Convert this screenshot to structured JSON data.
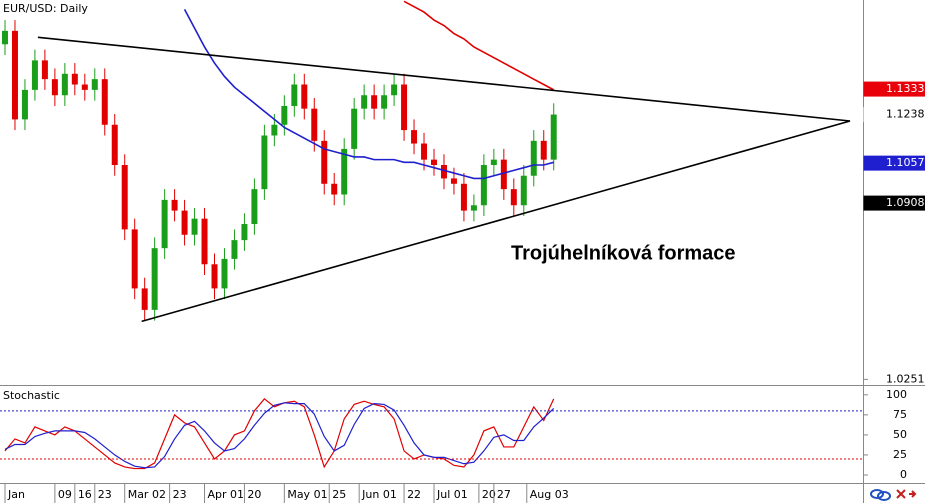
{
  "chart_data": [
    {
      "type": "candlestick",
      "title": "EUR/USD: Daily",
      "annotation": "Trojúhelníková formace",
      "xlim": [
        -0.5,
        86
      ],
      "ylim": [
        1.023,
        1.1665
      ],
      "yticks": [
        1.0251
      ],
      "up_color": "#1a9e1a",
      "down_color": "#e00000",
      "open": [
        1.15,
        1.155,
        1.122,
        1.133,
        1.144,
        1.137,
        1.131,
        1.139,
        1.135,
        1.133,
        1.137,
        1.12,
        1.105,
        1.081,
        1.059,
        1.051,
        1.074,
        1.092,
        1.088,
        1.079,
        1.085,
        1.068,
        1.059,
        1.07,
        1.077,
        1.083,
        1.096,
        1.116,
        1.12,
        1.127,
        1.135,
        1.126,
        1.114,
        1.098,
        1.094,
        1.111,
        1.126,
        1.131,
        1.126,
        1.131,
        1.135,
        1.118,
        1.113,
        1.107,
        1.105,
        1.1,
        1.098,
        1.088,
        1.09,
        1.105,
        1.107,
        1.096,
        1.09,
        1.101,
        1.114,
        1.107
      ],
      "high": [
        1.159,
        1.159,
        1.137,
        1.148,
        1.148,
        1.141,
        1.143,
        1.143,
        1.139,
        1.141,
        1.141,
        1.124,
        1.109,
        1.085,
        1.063,
        1.078,
        1.096,
        1.096,
        1.092,
        1.089,
        1.089,
        1.072,
        1.074,
        1.081,
        1.087,
        1.1,
        1.12,
        1.124,
        1.131,
        1.139,
        1.139,
        1.13,
        1.118,
        1.102,
        1.115,
        1.13,
        1.135,
        1.135,
        1.135,
        1.139,
        1.139,
        1.122,
        1.117,
        1.111,
        1.109,
        1.104,
        1.102,
        1.094,
        1.109,
        1.111,
        1.111,
        1.1,
        1.105,
        1.118,
        1.118,
        1.128
      ],
      "low": [
        1.146,
        1.118,
        1.118,
        1.129,
        1.133,
        1.127,
        1.127,
        1.131,
        1.129,
        1.129,
        1.116,
        1.101,
        1.077,
        1.055,
        1.047,
        1.047,
        1.07,
        1.084,
        1.075,
        1.075,
        1.064,
        1.055,
        1.055,
        1.066,
        1.073,
        1.079,
        1.092,
        1.112,
        1.116,
        1.123,
        1.122,
        1.11,
        1.094,
        1.09,
        1.09,
        1.107,
        1.122,
        1.122,
        1.122,
        1.127,
        1.114,
        1.109,
        1.103,
        1.101,
        1.096,
        1.094,
        1.084,
        1.084,
        1.086,
        1.101,
        1.092,
        1.086,
        1.086,
        1.097,
        1.103,
        1.103
      ],
      "close": [
        1.155,
        1.122,
        1.133,
        1.144,
        1.137,
        1.131,
        1.139,
        1.135,
        1.133,
        1.137,
        1.12,
        1.105,
        1.081,
        1.059,
        1.051,
        1.074,
        1.092,
        1.088,
        1.079,
        1.085,
        1.068,
        1.059,
        1.07,
        1.077,
        1.083,
        1.096,
        1.116,
        1.12,
        1.127,
        1.135,
        1.126,
        1.114,
        1.098,
        1.094,
        1.111,
        1.126,
        1.131,
        1.126,
        1.131,
        1.135,
        1.118,
        1.113,
        1.107,
        1.105,
        1.1,
        1.098,
        1.088,
        1.09,
        1.105,
        1.107,
        1.096,
        1.09,
        1.101,
        1.114,
        1.107,
        1.1238
      ],
      "overlays": [
        {
          "color": "#1f1fd0",
          "values": [
            null,
            null,
            null,
            null,
            null,
            null,
            null,
            null,
            null,
            null,
            null,
            null,
            null,
            null,
            null,
            null,
            null,
            null,
            1.163,
            1.156,
            1.149,
            1.143,
            1.138,
            1.134,
            1.131,
            1.128,
            1.125,
            1.122,
            1.119,
            1.117,
            1.115,
            1.113,
            1.111,
            1.11,
            1.109,
            1.108,
            1.108,
            1.107,
            1.107,
            1.107,
            1.106,
            1.106,
            1.105,
            1.104,
            1.103,
            1.102,
            1.101,
            1.1,
            1.1,
            1.101,
            1.102,
            1.103,
            1.104,
            1.105,
            1.105,
            1.106
          ]
        },
        {
          "color": "#e00000",
          "values": [
            null,
            null,
            null,
            null,
            null,
            null,
            null,
            null,
            null,
            null,
            null,
            null,
            null,
            null,
            null,
            null,
            null,
            null,
            null,
            null,
            null,
            null,
            null,
            null,
            null,
            null,
            null,
            null,
            null,
            null,
            null,
            null,
            null,
            null,
            null,
            null,
            null,
            null,
            null,
            null,
            1.166,
            1.164,
            1.162,
            1.159,
            1.157,
            1.154,
            1.152,
            1.149,
            1.147,
            1.145,
            1.143,
            1.141,
            1.139,
            1.137,
            1.135,
            1.133
          ]
        }
      ],
      "trendlines": [
        {
          "color": "#000000",
          "x": [
            3.3,
            84.7
          ],
          "y": [
            1.1526,
            1.1214
          ]
        },
        {
          "color": "#000000",
          "x": [
            13.7,
            84.7
          ],
          "y": [
            1.0467,
            1.1214
          ]
        }
      ],
      "price_labels": [
        {
          "value": 1.1333,
          "color": "#e8000b",
          "text_color": "#ffffff"
        },
        {
          "value": 1.1238,
          "color": "#ffffff",
          "text_color": "#000000"
        },
        {
          "value": 1.1057,
          "color": "#1f1fd0",
          "text_color": "#ffffff"
        },
        {
          "value": 1.0908,
          "color": "#000000",
          "text_color": "#ffffff"
        }
      ]
    },
    {
      "type": "line",
      "title": "Stochastic",
      "xlim": [
        -0.5,
        86
      ],
      "ylim": [
        -10,
        111
      ],
      "yticks": [
        0,
        25,
        50,
        75,
        100
      ],
      "levels": [
        {
          "value": 80,
          "color": "#2020c0"
        },
        {
          "value": 20,
          "color": "#e00000"
        }
      ],
      "series": [
        {
          "color": "#e00000",
          "values": [
            30,
            45,
            40,
            60,
            55,
            50,
            60,
            55,
            45,
            35,
            25,
            15,
            10,
            8,
            8,
            15,
            45,
            75,
            65,
            60,
            40,
            20,
            30,
            50,
            55,
            80,
            95,
            85,
            90,
            92,
            85,
            50,
            10,
            30,
            70,
            88,
            92,
            88,
            85,
            70,
            30,
            20,
            25,
            22,
            20,
            12,
            10,
            25,
            55,
            60,
            35,
            35,
            60,
            85,
            68,
            95
          ]
        },
        {
          "color": "#1f1fd0",
          "values": [
            32,
            38,
            38,
            48,
            52,
            55,
            55,
            55,
            53,
            45,
            35,
            25,
            17,
            11,
            9,
            10,
            23,
            45,
            62,
            67,
            55,
            40,
            30,
            33,
            45,
            62,
            77,
            87,
            90,
            89,
            89,
            76,
            48,
            30,
            37,
            63,
            83,
            89,
            88,
            81,
            62,
            40,
            25,
            22,
            22,
            18,
            14,
            16,
            30,
            47,
            50,
            43,
            43,
            60,
            71,
            83
          ]
        }
      ],
      "xticks": [
        {
          "value": 0,
          "label": "Jan"
        },
        {
          "value": 5,
          "label": "09"
        },
        {
          "value": 7,
          "label": "16"
        },
        {
          "value": 9,
          "label": "23"
        },
        {
          "value": 12,
          "label": "Mar 02"
        },
        {
          "value": 16.5,
          "label": "23"
        },
        {
          "value": 20,
          "label": "Apr 01"
        },
        {
          "value": 24,
          "label": "20"
        },
        {
          "value": 28,
          "label": "May 01"
        },
        {
          "value": 32.5,
          "label": "25"
        },
        {
          "value": 35.5,
          "label": "Jun 01"
        },
        {
          "value": 40,
          "label": "22"
        },
        {
          "value": 43,
          "label": "Jul 01"
        },
        {
          "value": 47.5,
          "label": "20"
        },
        {
          "value": 49,
          "label": "27"
        },
        {
          "value": 52.3,
          "label": "Aug 03"
        }
      ]
    }
  ]
}
